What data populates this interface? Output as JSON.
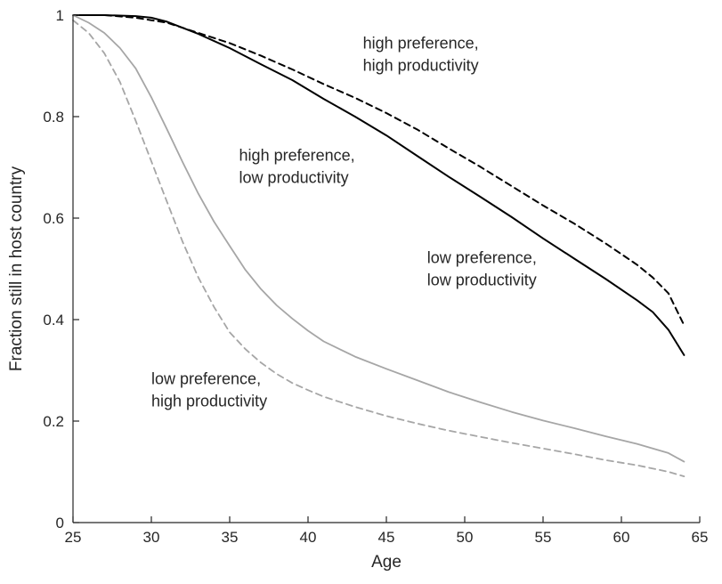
{
  "chart_data": {
    "type": "line",
    "title": "",
    "xlabel": "Age",
    "ylabel": "Fraction still in host country",
    "xlim": [
      25,
      65
    ],
    "ylim": [
      0,
      1
    ],
    "xticks": [
      25,
      30,
      35,
      40,
      45,
      50,
      55,
      60,
      65
    ],
    "yticks": [
      0,
      0.2,
      0.4,
      0.6,
      0.8,
      1
    ],
    "ytick_labels": [
      "0",
      "0.2",
      "0.4",
      "0.6",
      "0.8",
      "1"
    ],
    "grid": false,
    "legend": "none",
    "series": [
      {
        "color": "#000000",
        "dash": "dashed",
        "x": [
          25,
          27,
          29,
          30,
          31,
          33,
          35,
          37,
          39,
          41,
          43,
          45,
          47,
          49,
          51,
          53,
          55,
          57,
          59,
          61,
          62,
          63,
          64
        ],
        "y": [
          1.0,
          1.0,
          0.995,
          0.99,
          0.985,
          0.965,
          0.945,
          0.92,
          0.893,
          0.864,
          0.837,
          0.807,
          0.774,
          0.737,
          0.701,
          0.663,
          0.625,
          0.589,
          0.55,
          0.508,
          0.483,
          0.452,
          0.389
        ]
      },
      {
        "color": "#000000",
        "dash": "solid",
        "x": [
          25,
          27,
          29,
          30,
          31,
          33,
          35,
          37,
          39,
          41,
          43,
          45,
          47,
          49,
          51,
          53,
          55,
          57,
          59,
          61,
          62,
          63,
          64
        ],
        "y": [
          1.0,
          1.0,
          0.998,
          0.995,
          0.987,
          0.963,
          0.935,
          0.903,
          0.872,
          0.835,
          0.8,
          0.763,
          0.722,
          0.681,
          0.642,
          0.602,
          0.56,
          0.52,
          0.48,
          0.438,
          0.415,
          0.38,
          0.33
        ]
      },
      {
        "color": "#a6a6a6",
        "dash": "solid",
        "x": [
          25,
          26,
          27,
          28,
          29,
          30,
          31,
          32,
          33,
          34,
          35,
          36,
          37,
          38,
          39,
          40,
          41,
          42,
          43,
          45,
          47,
          49,
          51,
          53,
          55,
          57,
          59,
          61,
          63,
          64
        ],
        "y": [
          1.0,
          0.985,
          0.965,
          0.935,
          0.895,
          0.838,
          0.775,
          0.71,
          0.648,
          0.593,
          0.545,
          0.498,
          0.46,
          0.428,
          0.402,
          0.378,
          0.357,
          0.342,
          0.327,
          0.303,
          0.28,
          0.257,
          0.237,
          0.218,
          0.201,
          0.186,
          0.17,
          0.155,
          0.137,
          0.12
        ]
      },
      {
        "color": "#a6a6a6",
        "dash": "dashed",
        "x": [
          25,
          26,
          27,
          28,
          29,
          30,
          31,
          32,
          33,
          34,
          35,
          36,
          37,
          38,
          39,
          40,
          41,
          42,
          43,
          45,
          47,
          49,
          51,
          53,
          55,
          57,
          59,
          61,
          63,
          64
        ],
        "y": [
          0.99,
          0.965,
          0.925,
          0.868,
          0.792,
          0.712,
          0.632,
          0.553,
          0.483,
          0.425,
          0.375,
          0.342,
          0.315,
          0.293,
          0.275,
          0.261,
          0.248,
          0.238,
          0.228,
          0.21,
          0.195,
          0.181,
          0.169,
          0.157,
          0.146,
          0.135,
          0.123,
          0.113,
          0.1,
          0.091
        ]
      }
    ],
    "annotations": [
      {
        "lines": [
          "high preference,",
          "high productivity"
        ],
        "x": 43.5,
        "y": 0.934
      },
      {
        "lines": [
          "high preference,",
          "low productivity"
        ],
        "x": 35.6,
        "y": 0.713
      },
      {
        "lines": [
          "low preference,",
          "low productivity"
        ],
        "x": 47.6,
        "y": 0.511
      },
      {
        "lines": [
          "low preference,",
          "high productivity"
        ],
        "x": 30.0,
        "y": 0.273
      }
    ]
  }
}
